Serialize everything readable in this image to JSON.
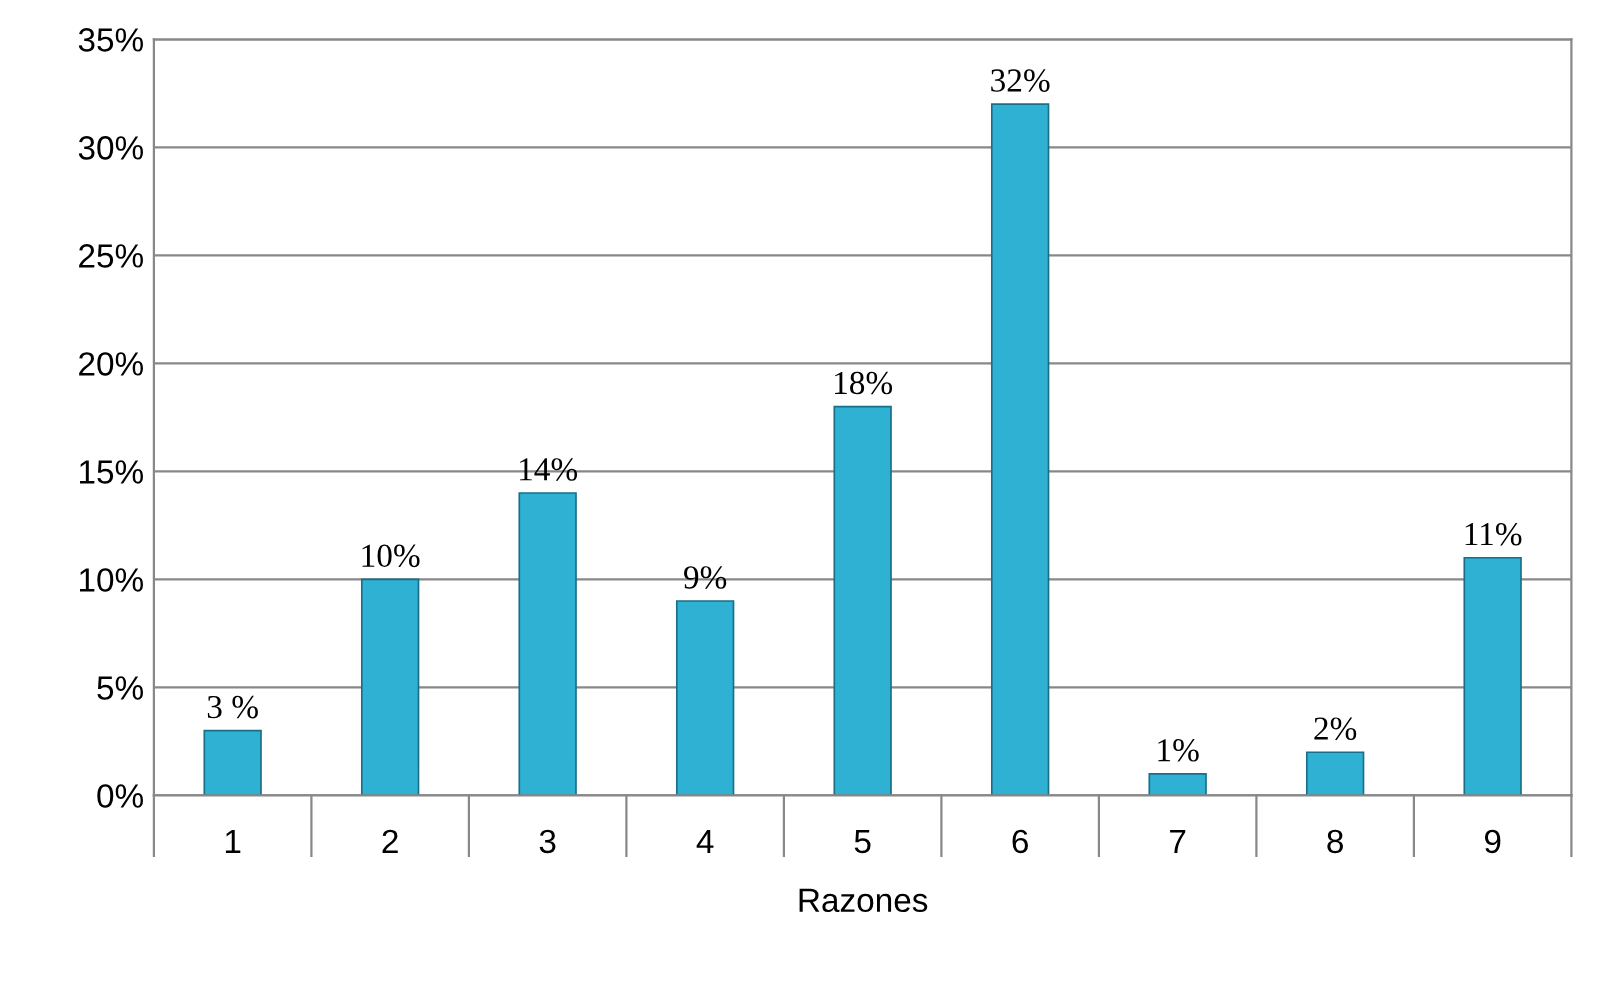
{
  "chart_data": {
    "type": "bar",
    "xlabel": "Razones",
    "categories": [
      "1",
      "2",
      "3",
      "4",
      "5",
      "6",
      "7",
      "8",
      "9"
    ],
    "values": [
      3,
      10,
      14,
      9,
      18,
      32,
      1,
      2,
      11
    ],
    "value_labels": [
      "3 %",
      "10%",
      "14%",
      "9%",
      "18%",
      "32%",
      "1%",
      "2%",
      "11%"
    ],
    "color": "#2fb1d3",
    "ylim": [
      0,
      35
    ],
    "yticks": [
      {
        "value": 0,
        "label": "0%"
      },
      {
        "value": 5,
        "label": "5%"
      },
      {
        "value": 10,
        "label": "10%"
      },
      {
        "value": 15,
        "label": "15%"
      },
      {
        "value": 20,
        "label": "20%"
      },
      {
        "value": 25,
        "label": "25%"
      },
      {
        "value": 30,
        "label": "30%"
      },
      {
        "value": 35,
        "label": "35%"
      }
    ],
    "grid": "y",
    "legend": false
  }
}
